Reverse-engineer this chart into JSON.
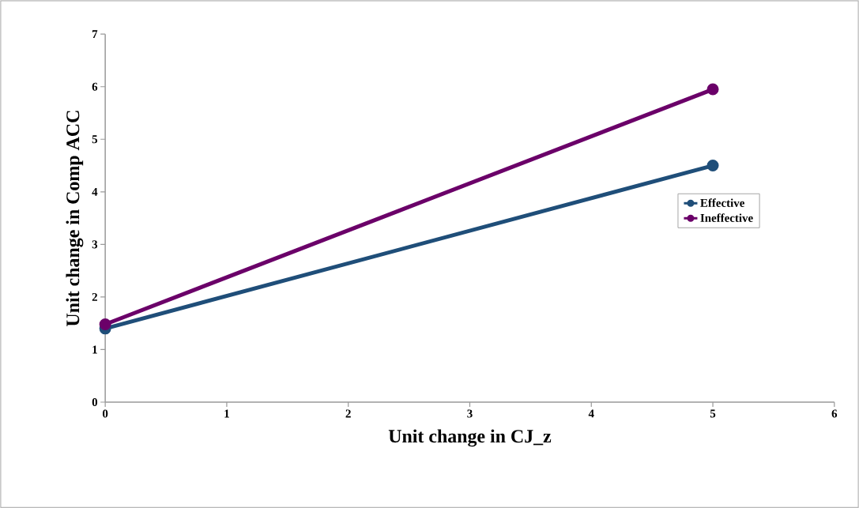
{
  "chart_data": {
    "type": "line",
    "xlabel": "Unit change in CJ_z",
    "ylabel": "Unit change in Comp ACC",
    "x": [
      0,
      5
    ],
    "series": [
      {
        "name": "Effective",
        "color": "#1f4e79",
        "values": [
          1.4,
          4.5
        ]
      },
      {
        "name": "Ineffective",
        "color": "#6b0069",
        "values": [
          1.48,
          5.95
        ]
      }
    ],
    "xlim": [
      0,
      6
    ],
    "ylim": [
      0,
      7
    ],
    "xticks": [
      0,
      1,
      2,
      3,
      4,
      5,
      6
    ],
    "yticks": [
      0,
      1,
      2,
      3,
      4,
      5,
      6,
      7
    ],
    "grid": false,
    "legend": "right",
    "marker": "circle",
    "line_style": "solid"
  }
}
